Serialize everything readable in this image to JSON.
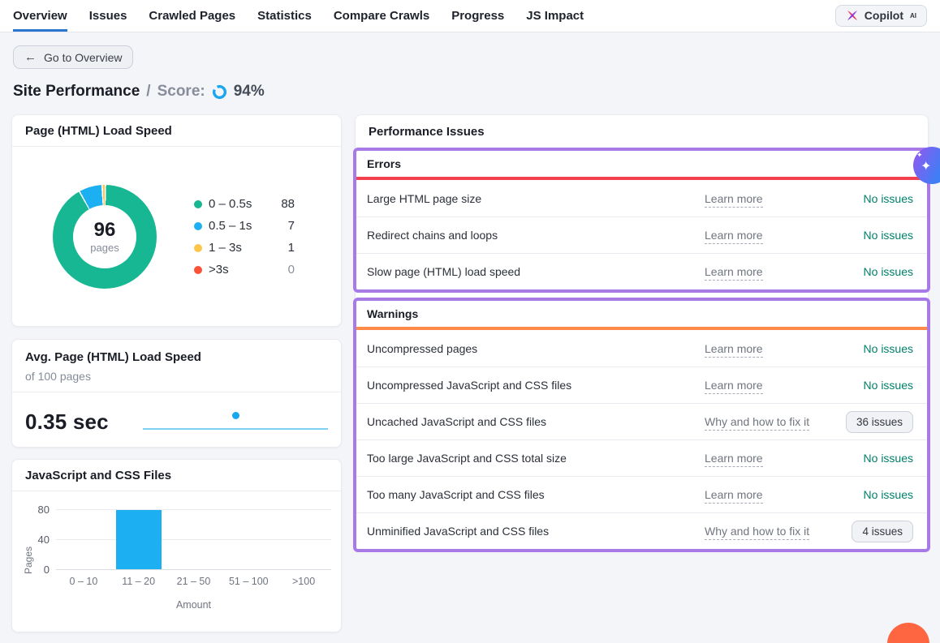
{
  "nav": {
    "items": [
      {
        "label": "Overview",
        "active": true
      },
      {
        "label": "Issues",
        "active": false
      },
      {
        "label": "Crawled Pages",
        "active": false
      },
      {
        "label": "Statistics",
        "active": false
      },
      {
        "label": "Compare Crawls",
        "active": false
      },
      {
        "label": "Progress",
        "active": false
      },
      {
        "label": "JS Impact",
        "active": false
      }
    ],
    "copilot_label": "Copilot",
    "copilot_sup": "AI"
  },
  "toolbar": {
    "back_label": "Go to Overview",
    "back_arrow": "←"
  },
  "page": {
    "title": "Site Performance",
    "separator": "/",
    "score_label": "Score:",
    "score_value": "94%"
  },
  "cards": {
    "load_speed": {
      "title": "Page (HTML) Load Speed",
      "center_value": "96",
      "center_label": "pages"
    },
    "avg_speed": {
      "title": "Avg. Page (HTML) Load Speed",
      "subtitle": "of 100 pages",
      "value": "0.35 sec"
    },
    "js_css": {
      "title": "JavaScript and CSS Files"
    }
  },
  "issues": {
    "title": "Performance Issues",
    "sections": [
      {
        "name": "Errors",
        "accent": "#f2404e",
        "rows": [
          {
            "label": "Large HTML page size",
            "link": "Learn more",
            "status": "No issues",
            "status_type": "ok"
          },
          {
            "label": "Redirect chains and loops",
            "link": "Learn more",
            "status": "No issues",
            "status_type": "ok"
          },
          {
            "label": "Slow page (HTML) load speed",
            "link": "Learn more",
            "status": "No issues",
            "status_type": "ok"
          }
        ]
      },
      {
        "name": "Warnings",
        "accent": "#ff8a4a",
        "rows": [
          {
            "label": "Uncompressed pages",
            "link": "Learn more",
            "status": "No issues",
            "status_type": "ok"
          },
          {
            "label": "Uncompressed JavaScript and CSS files",
            "link": "Learn more",
            "status": "No issues",
            "status_type": "ok"
          },
          {
            "label": "Uncached JavaScript and CSS files",
            "link": "Why and how to fix it",
            "status": "36 issues",
            "status_type": "button"
          },
          {
            "label": "Too large JavaScript and CSS total size",
            "link": "Learn more",
            "status": "No issues",
            "status_type": "ok"
          },
          {
            "label": "Too many JavaScript and CSS files",
            "link": "Learn more",
            "status": "No issues",
            "status_type": "ok"
          },
          {
            "label": "Unminified JavaScript and CSS files",
            "link": "Why and how to fix it",
            "status": "4 issues",
            "status_type": "button"
          }
        ]
      }
    ]
  },
  "chart_data": [
    {
      "type": "pie",
      "donut": true,
      "title": "Page (HTML) Load Speed",
      "labels": [
        "0 – 0.5s",
        "0.5 – 1s",
        "1 – 3s",
        ">3s"
      ],
      "values": [
        88,
        7,
        1,
        0
      ],
      "colors": [
        "#17b794",
        "#1cb0f2",
        "#fdc64b",
        "#fb5237"
      ],
      "center_value": "96",
      "center_label": "pages",
      "legend_position": "right"
    },
    {
      "type": "line",
      "title": "Avg. Page (HTML) Load Speed",
      "subtitle": "of 100 pages",
      "value_label": "0.35 sec",
      "points_note": "flat sparkline with single highlighted dot at ~50% of x-range",
      "line_color": "#7fd0f2",
      "dot_color": "#18a7ee"
    },
    {
      "type": "bar",
      "title": "JavaScript and CSS Files",
      "categories": [
        "0 – 10",
        "11 – 20",
        "21 – 50",
        "51 – 100",
        ">100"
      ],
      "values": [
        0,
        79,
        0,
        0,
        0
      ],
      "xlabel": "Amount",
      "ylabel": "Pages",
      "yticks": [
        0,
        40,
        80
      ],
      "ylim": [
        0,
        80
      ],
      "bar_color": "#1cb0f2",
      "grid": true
    }
  ],
  "colors": {
    "nav_active": "#2a76d2",
    "status_ok": "#00806a",
    "highlight_purple": "#a87ae8",
    "error_accent": "#f2404e",
    "warning_accent": "#ff8a4a",
    "score_ring": "#1ba6ee"
  }
}
